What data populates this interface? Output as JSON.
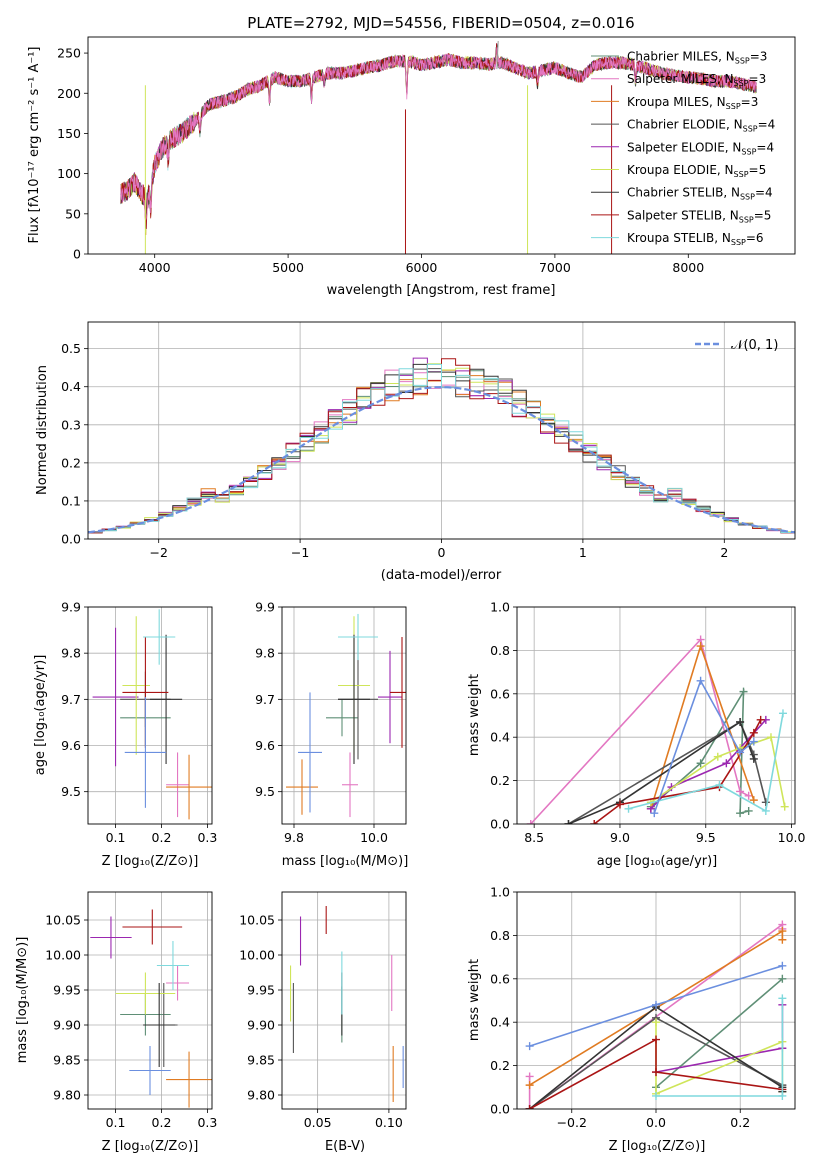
{
  "figure_title": "PLATE=2792, MJD=54556, FIBERID=0504, z=0.016",
  "colors": [
    "#5f8f76",
    "#e377c2",
    "#e07b22",
    "#555555",
    "#9b27b0",
    "#cfe55a",
    "#333333",
    "#aa1515",
    "#7fd9dd",
    "#6b8fdf"
  ],
  "labels": {
    "spec_x": "wavelength [Angstrom, rest frame]",
    "spec_y": "Flux [fλ10⁻¹⁷ erg cm⁻² s⁻¹ A⁻¹]",
    "hist_x": "(data-model)/error",
    "hist_y": "Normed distribution",
    "hist_legend": "𝒩(0, 1)",
    "z_x": "Z [log₁₀(Z/Z⊙)]",
    "age_y": "age  [log₁₀(age/yr)]",
    "mass_x": "mass [log₁₀(M/M⊙)]",
    "mw_y": "mass weight",
    "age_x": "age  [log₁₀(age/yr)]",
    "mass_y": "mass [log₁₀(M/M⊙)]",
    "ebv_x": "E(B-V)"
  },
  "legend_labels": [
    "Chabrier MILES, N_SSP=3",
    "Salpeter MILES, N_SSP=3",
    "Kroupa MILES, N_SSP=3",
    "Chabrier ELODIE, N_SSP=4",
    "Salpeter ELODIE, N_SSP=4",
    "Kroupa ELODIE, N_SSP=5",
    "Chabrier STELIB, N_SSP=4",
    "Salpeter STELIB, N_SSP=5",
    "Kroupa STELIB, N_SSP=6"
  ],
  "chart_data": [
    {
      "id": "spectrum",
      "type": "line",
      "xlim": [
        3500,
        8800
      ],
      "ylim": [
        0,
        270
      ],
      "xticks": [
        4000,
        5000,
        6000,
        7000,
        8000
      ],
      "yticks": [
        0,
        50,
        100,
        150,
        200,
        250
      ],
      "anchors_x": [
        3750,
        3800,
        3850,
        3900,
        3950,
        4000,
        4050,
        4100,
        4150,
        4200,
        4300,
        4400,
        4500,
        4600,
        4700,
        4800,
        4900,
        5000,
        5100,
        5200,
        5300,
        5400,
        5500,
        5600,
        5700,
        5800,
        5900,
        6000,
        6100,
        6200,
        6300,
        6400,
        6500,
        6600,
        6700,
        6800,
        6900,
        7000,
        7100,
        7200,
        7300,
        7400,
        7500,
        7600,
        7700,
        7800,
        7900,
        8000,
        8100,
        8200,
        8300,
        8400,
        8500
      ],
      "anchors_y": [
        75,
        80,
        90,
        75,
        70,
        110,
        130,
        140,
        145,
        150,
        165,
        185,
        190,
        195,
        205,
        210,
        220,
        215,
        215,
        220,
        225,
        225,
        228,
        232,
        235,
        240,
        240,
        235,
        238,
        242,
        238,
        238,
        236,
        238,
        232,
        225,
        228,
        232,
        225,
        220,
        235,
        238,
        238,
        235,
        230,
        225,
        222,
        220,
        218,
        215,
        215,
        212,
        208
      ],
      "grid": false
    },
    {
      "id": "residuals",
      "type": "histogram",
      "xlim": [
        -2.5,
        2.5
      ],
      "ylim": [
        0,
        0.57
      ],
      "xticks": [
        -2,
        -1,
        0,
        1,
        2
      ],
      "yticks": [
        0.0,
        0.1,
        0.2,
        0.3,
        0.4,
        0.5
      ],
      "bin_width": 0.1,
      "bin_start": -2.5,
      "model_sigma": 0.93,
      "reference": {
        "name": "𝒩(0, 1)",
        "mean": 0,
        "std": 1
      },
      "grid": true
    },
    {
      "id": "Z_vs_age",
      "type": "scatter",
      "xlim": [
        0.04,
        0.31
      ],
      "ylim": [
        9.43,
        9.9
      ],
      "xticks": [
        0.1,
        0.2,
        0.3
      ],
      "yticks": [
        9.5,
        9.6,
        9.7,
        9.8,
        9.9
      ],
      "points": [
        {
          "x": 0.165,
          "y": 9.66,
          "xerr": 0.055,
          "yerr": 0.06
        },
        {
          "x": 0.235,
          "y": 9.515,
          "xerr": 0.025,
          "yerr": 0.07
        },
        {
          "x": 0.26,
          "y": 9.51,
          "xerr": 0.05,
          "yerr": 0.07
        },
        {
          "x": 0.165,
          "y": 9.7,
          "xerr": 0.055,
          "yerr": 0.06
        },
        {
          "x": 0.1,
          "y": 9.705,
          "xerr": 0.05,
          "yerr": 0.15
        },
        {
          "x": 0.145,
          "y": 9.73,
          "xerr": 0.03,
          "yerr": 0.15
        },
        {
          "x": 0.21,
          "y": 9.7,
          "xerr": 0.035,
          "yerr": 0.14
        },
        {
          "x": 0.165,
          "y": 9.715,
          "xerr": 0.05,
          "yerr": 0.12
        },
        {
          "x": 0.195,
          "y": 9.835,
          "xerr": 0.035,
          "yerr": 0.06
        },
        {
          "x": 0.165,
          "y": 9.585,
          "xerr": 0.045,
          "yerr": 0.12
        }
      ],
      "grid": true
    },
    {
      "id": "mass_vs_age",
      "type": "scatter",
      "xlim": [
        9.77,
        10.08
      ],
      "ylim": [
        9.43,
        9.9
      ],
      "xticks": [
        9.8,
        10.0
      ],
      "yticks": [
        9.5,
        9.6,
        9.7,
        9.8,
        9.9
      ],
      "points": [
        {
          "x": 9.92,
          "y": 9.66,
          "xerr": 0.04,
          "yerr": 0.04
        },
        {
          "x": 9.94,
          "y": 9.515,
          "xerr": 0.02,
          "yerr": 0.07
        },
        {
          "x": 9.82,
          "y": 9.51,
          "xerr": 0.04,
          "yerr": 0.06
        },
        {
          "x": 9.96,
          "y": 9.7,
          "xerr": 0.05,
          "yerr": 0.13
        },
        {
          "x": 10.04,
          "y": 9.705,
          "xerr": 0.03,
          "yerr": 0.1
        },
        {
          "x": 9.95,
          "y": 9.73,
          "xerr": 0.04,
          "yerr": 0.15
        },
        {
          "x": 9.95,
          "y": 9.7,
          "xerr": 0.04,
          "yerr": 0.14
        },
        {
          "x": 10.07,
          "y": 9.715,
          "xerr": 0.03,
          "yerr": 0.12
        },
        {
          "x": 9.96,
          "y": 9.835,
          "xerr": 0.05,
          "yerr": 0.05
        },
        {
          "x": 9.84,
          "y": 9.585,
          "xerr": 0.03,
          "yerr": 0.13
        }
      ],
      "grid": true
    },
    {
      "id": "age_vs_mass_weight",
      "type": "line",
      "xlim": [
        8.4,
        10.02
      ],
      "ylim": [
        0,
        1
      ],
      "xticks": [
        8.5,
        9.0,
        9.5,
        10.0
      ],
      "yticks": [
        0.0,
        0.2,
        0.4,
        0.6,
        0.8,
        1.0
      ],
      "series": [
        {
          "x": [
            9.18,
            9.47,
            9.72,
            9.7,
            9.75
          ],
          "y": [
            0.08,
            0.28,
            0.61,
            0.05,
            0.06
          ]
        },
        {
          "x": [
            8.48,
            9.47,
            9.7,
            9.75
          ],
          "y": [
            0.0,
            0.85,
            0.15,
            0.13
          ]
        },
        {
          "x": [
            9.18,
            9.47,
            9.78
          ],
          "y": [
            0.07,
            0.82,
            0.11
          ]
        },
        {
          "x": [
            8.7,
            9.7,
            9.78,
            9.85
          ],
          "y": [
            0.0,
            0.47,
            0.32,
            0.1
          ]
        },
        {
          "x": [
            9.18,
            9.3,
            9.62,
            9.85
          ],
          "y": [
            0.07,
            0.17,
            0.28,
            0.48
          ]
        },
        {
          "x": [
            9.18,
            9.57,
            9.7,
            9.88,
            9.96
          ],
          "y": [
            0.1,
            0.31,
            0.35,
            0.4,
            0.08
          ]
        },
        {
          "x": [
            8.7,
            9.0,
            9.7,
            9.78
          ],
          "y": [
            0.0,
            0.1,
            0.47,
            0.3
          ]
        },
        {
          "x": [
            8.85,
            9.0,
            9.58,
            9.78,
            9.82
          ],
          "y": [
            0.0,
            0.09,
            0.17,
            0.42,
            0.48
          ]
        },
        {
          "x": [
            9.05,
            9.58,
            9.85,
            9.95
          ],
          "y": [
            0.07,
            0.18,
            0.06,
            0.51
          ]
        },
        {
          "x": [
            9.2,
            9.47,
            9.7,
            9.78
          ],
          "y": [
            0.05,
            0.66,
            0.33,
            0.38
          ]
        }
      ],
      "grid": true
    },
    {
      "id": "Z_vs_mass",
      "type": "scatter",
      "xlim": [
        0.04,
        0.31
      ],
      "ylim": [
        9.78,
        10.09
      ],
      "xticks": [
        0.1,
        0.2,
        0.3
      ],
      "yticks": [
        9.8,
        9.85,
        9.9,
        9.95,
        10.0,
        10.05
      ],
      "points": [
        {
          "x": 0.165,
          "y": 9.915,
          "xerr": 0.055,
          "yerr": 0.03
        },
        {
          "x": 0.235,
          "y": 9.96,
          "xerr": 0.025,
          "yerr": 0.025
        },
        {
          "x": 0.26,
          "y": 9.822,
          "xerr": 0.05,
          "yerr": 0.04
        },
        {
          "x": 0.205,
          "y": 9.9,
          "xerr": 0.03,
          "yerr": 0.06
        },
        {
          "x": 0.09,
          "y": 10.025,
          "xerr": 0.045,
          "yerr": 0.03
        },
        {
          "x": 0.165,
          "y": 9.945,
          "xerr": 0.065,
          "yerr": 0.03
        },
        {
          "x": 0.195,
          "y": 9.9,
          "xerr": 0.035,
          "yerr": 0.06
        },
        {
          "x": 0.18,
          "y": 10.04,
          "xerr": 0.065,
          "yerr": 0.025
        },
        {
          "x": 0.225,
          "y": 9.985,
          "xerr": 0.035,
          "yerr": 0.035
        },
        {
          "x": 0.175,
          "y": 9.835,
          "xerr": 0.045,
          "yerr": 0.035
        }
      ],
      "grid": true
    },
    {
      "id": "EBV_vs_mass",
      "type": "scatter",
      "xlim": [
        0.025,
        0.112
      ],
      "ylim": [
        9.78,
        10.09
      ],
      "xticks": [
        0.05,
        0.1
      ],
      "yticks": [
        9.8,
        9.85,
        9.9,
        9.95,
        10.0,
        10.05
      ],
      "points": [
        {
          "x": 0.067,
          "y": 9.915,
          "xerr": 0,
          "yerr": 0.04
        },
        {
          "x": 0.102,
          "y": 9.96,
          "xerr": 0,
          "yerr": 0.04
        },
        {
          "x": 0.103,
          "y": 9.83,
          "xerr": 0,
          "yerr": 0.04
        },
        {
          "x": 0.033,
          "y": 9.91,
          "xerr": 0,
          "yerr": 0.05
        },
        {
          "x": 0.038,
          "y": 10.02,
          "xerr": 0,
          "yerr": 0.035
        },
        {
          "x": 0.031,
          "y": 9.945,
          "xerr": 0,
          "yerr": 0.04
        },
        {
          "x": 0.067,
          "y": 9.93,
          "xerr": 0,
          "yerr": 0.045
        },
        {
          "x": 0.056,
          "y": 10.05,
          "xerr": 0,
          "yerr": 0.02
        },
        {
          "x": 0.067,
          "y": 9.96,
          "xerr": 0,
          "yerr": 0.045
        },
        {
          "x": 0.11,
          "y": 9.84,
          "xerr": 0,
          "yerr": 0.03
        }
      ],
      "grid": true
    },
    {
      "id": "Z_vs_mass_weight",
      "type": "line",
      "xlim": [
        -0.33,
        0.33
      ],
      "ylim": [
        0,
        1
      ],
      "xticks": [
        -0.2,
        0.0,
        0.2
      ],
      "yticks": [
        0.0,
        0.2,
        0.4,
        0.6,
        0.8,
        1.0
      ],
      "series": [
        {
          "x": [
            0.0,
            0.3
          ],
          "y": [
            0.1,
            0.6
          ]
        },
        {
          "x": [
            -0.3,
            -0.3,
            0.3,
            0.3
          ],
          "y": [
            0.15,
            0.0,
            0.85,
            0.83
          ]
        },
        {
          "x": [
            -0.3,
            0.3,
            0.3
          ],
          "y": [
            0.11,
            0.82,
            0.78
          ]
        },
        {
          "x": [
            -0.3,
            0.0,
            0.3
          ],
          "y": [
            0.0,
            0.42,
            0.11
          ]
        },
        {
          "x": [
            0.0,
            0.3,
            0.3
          ],
          "y": [
            0.17,
            0.28,
            0.48
          ]
        },
        {
          "x": [
            0.0,
            0.0,
            0.3,
            0.3
          ],
          "y": [
            0.4,
            0.07,
            0.31,
            0.08
          ]
        },
        {
          "x": [
            -0.3,
            0.0,
            0.3,
            0.3
          ],
          "y": [
            0.0,
            0.47,
            0.1,
            0.08
          ]
        },
        {
          "x": [
            -0.3,
            0.0,
            0.0,
            0.3
          ],
          "y": [
            0.0,
            0.32,
            0.17,
            0.09
          ]
        },
        {
          "x": [
            0.0,
            0.3,
            0.3
          ],
          "y": [
            0.06,
            0.06,
            0.51
          ]
        },
        {
          "x": [
            -0.3,
            0.0,
            0.3
          ],
          "y": [
            0.29,
            0.48,
            0.66
          ]
        }
      ],
      "grid": true
    }
  ]
}
